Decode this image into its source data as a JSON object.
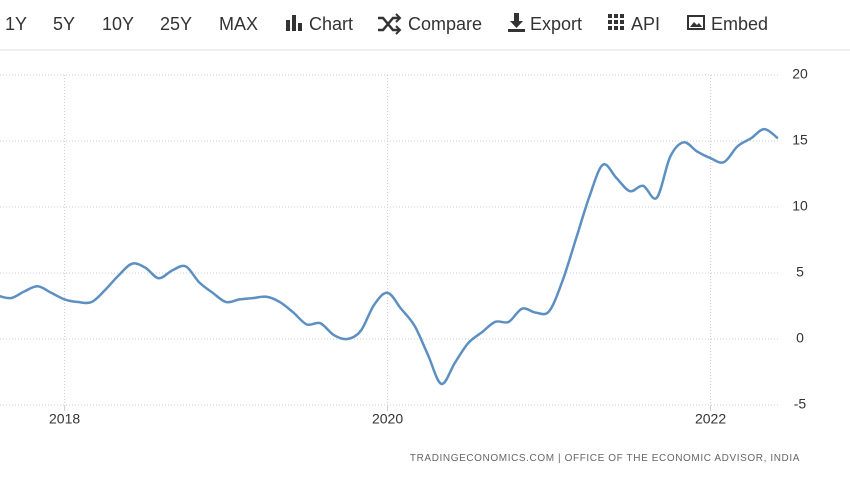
{
  "toolbar": {
    "items": [
      "1Y",
      "5Y",
      "10Y",
      "25Y",
      "MAX",
      "Chart",
      "Compare",
      "Export",
      "API",
      "Embed"
    ]
  },
  "chart_data": {
    "type": "line",
    "source": "TRADINGECONOMICS.COM | OFFICE OF THE ECONOMIC ADVISOR, INDIA",
    "x": [
      2017.583,
      2017.667,
      2017.75,
      2017.833,
      2017.917,
      2018,
      2018.083,
      2018.167,
      2018.25,
      2018.333,
      2018.417,
      2018.5,
      2018.583,
      2018.667,
      2018.75,
      2018.833,
      2018.917,
      2019,
      2019.083,
      2019.167,
      2019.25,
      2019.333,
      2019.417,
      2019.5,
      2019.583,
      2019.667,
      2019.75,
      2019.833,
      2019.917,
      2020,
      2020.083,
      2020.167,
      2020.25,
      2020.333,
      2020.417,
      2020.5,
      2020.583,
      2020.667,
      2020.75,
      2020.833,
      2020.917,
      2021,
      2021.083,
      2021.167,
      2021.25,
      2021.333,
      2021.417,
      2021.5,
      2021.583,
      2021.667,
      2021.75,
      2021.833,
      2021.917,
      2022,
      2022.083,
      2022.167,
      2022.25,
      2022.333,
      2022.417
    ],
    "series": [
      {
        "color": "#5d8fc2",
        "values": [
          3.3,
          3.1,
          3.6,
          4.0,
          3.5,
          3.0,
          2.8,
          2.8,
          3.7,
          4.8,
          5.7,
          5.4,
          4.6,
          5.2,
          5.5,
          4.3,
          3.5,
          2.8,
          3.0,
          3.1,
          3.2,
          2.8,
          2.0,
          1.1,
          1.2,
          0.3,
          0.0,
          0.6,
          2.6,
          3.5,
          2.3,
          1.0,
          -1.2,
          -3.4,
          -1.8,
          -0.3,
          0.5,
          1.3,
          1.3,
          2.3,
          2.0,
          2.1,
          4.4,
          7.6,
          10.8,
          13.2,
          12.2,
          11.2,
          11.6,
          10.7,
          13.8,
          14.9,
          14.2,
          13.7,
          13.4,
          14.6,
          15.2,
          15.9,
          15.2
        ]
      }
    ],
    "xlim": [
      2017.6,
      2022.43
    ],
    "xticks": [
      2018,
      2020,
      2022
    ],
    "ylim": [
      -5,
      20
    ],
    "yticks": [
      -5,
      0,
      5,
      10,
      15,
      20
    ],
    "grid": true
  }
}
